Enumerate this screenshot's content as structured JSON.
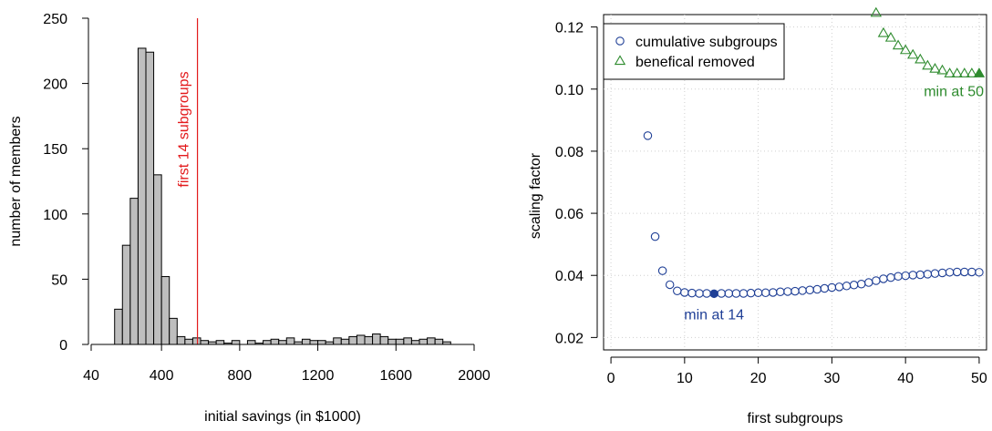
{
  "chart_data": [
    {
      "type": "bar",
      "subtype": "histogram",
      "xlabel": "initial savings (in $1000)",
      "ylabel": "number of members",
      "xlim": [
        40,
        2000
      ],
      "ylim": [
        0,
        250
      ],
      "xticks": [
        40,
        400,
        800,
        1200,
        1600,
        2000
      ],
      "yticks": [
        0,
        50,
        100,
        150,
        200,
        250
      ],
      "bin_width": 40,
      "bins_start": [
        160,
        200,
        240,
        280,
        320,
        360,
        400,
        440,
        480,
        520,
        560,
        600,
        640,
        680,
        720,
        760,
        800,
        840,
        880,
        920,
        960,
        1000,
        1040,
        1080,
        1120,
        1160,
        1200,
        1240,
        1280,
        1320,
        1360,
        1400,
        1440,
        1480,
        1520,
        1560,
        1600,
        1640,
        1680,
        1720,
        1760,
        1800,
        1840
      ],
      "values": [
        27,
        76,
        112,
        227,
        224,
        130,
        52,
        20,
        6,
        4,
        5,
        3,
        2,
        3,
        1,
        3,
        0,
        3,
        1,
        3,
        4,
        3,
        5,
        2,
        4,
        3,
        3,
        2,
        5,
        4,
        6,
        7,
        6,
        8,
        6,
        4,
        4,
        5,
        3,
        4,
        5,
        4,
        2
      ],
      "fill_color": "#bebebe",
      "vline": {
        "x": 584,
        "label": "first 14 subgroups",
        "color": "#e31a1c"
      }
    },
    {
      "type": "scatter",
      "xlabel": "first subgroups",
      "ylabel": "scaling factor",
      "xlim": [
        -1,
        51
      ],
      "ylim": [
        0.016,
        0.124
      ],
      "xticks": [
        0,
        10,
        20,
        30,
        40,
        50
      ],
      "yticks": [
        0.02,
        0.04,
        0.06,
        0.08,
        0.1,
        0.12
      ],
      "grid": true,
      "legend_position": "top-left",
      "series": [
        {
          "name": "cumulative subgroups",
          "marker": "circle",
          "color": "#1f3f96",
          "x": [
            5,
            6,
            7,
            8,
            9,
            10,
            11,
            12,
            13,
            14,
            15,
            16,
            17,
            18,
            19,
            20,
            21,
            22,
            23,
            24,
            25,
            26,
            27,
            28,
            29,
            30,
            31,
            32,
            33,
            34,
            35,
            36,
            37,
            38,
            39,
            40,
            41,
            42,
            43,
            44,
            45,
            46,
            47,
            48,
            49,
            50
          ],
          "y": [
            0.085,
            0.0525,
            0.0415,
            0.037,
            0.035,
            0.0345,
            0.0343,
            0.0342,
            0.0342,
            0.0341,
            0.0342,
            0.0342,
            0.0342,
            0.0342,
            0.0343,
            0.0344,
            0.0344,
            0.0345,
            0.0347,
            0.0348,
            0.0349,
            0.0351,
            0.0353,
            0.0355,
            0.0358,
            0.0361,
            0.0363,
            0.0366,
            0.0369,
            0.0372,
            0.0377,
            0.0383,
            0.0389,
            0.0393,
            0.0397,
            0.0399,
            0.0401,
            0.0402,
            0.0404,
            0.0406,
            0.0408,
            0.041,
            0.0411,
            0.0411,
            0.0411,
            0.041
          ],
          "min": {
            "x": 14,
            "y": 0.0341,
            "label": "min at 14"
          }
        },
        {
          "name": "benefical removed",
          "marker": "triangle",
          "color": "#2e8b2e",
          "x": [
            36,
            37,
            38,
            39,
            40,
            41,
            42,
            43,
            44,
            45,
            46,
            47,
            48,
            49,
            50
          ],
          "y": [
            0.1245,
            0.118,
            0.1165,
            0.114,
            0.1125,
            0.111,
            0.1095,
            0.1075,
            0.1065,
            0.106,
            0.105,
            0.105,
            0.105,
            0.105,
            0.105
          ],
          "min": {
            "x": 50,
            "y": 0.105,
            "label": "min at 50"
          }
        }
      ]
    }
  ]
}
